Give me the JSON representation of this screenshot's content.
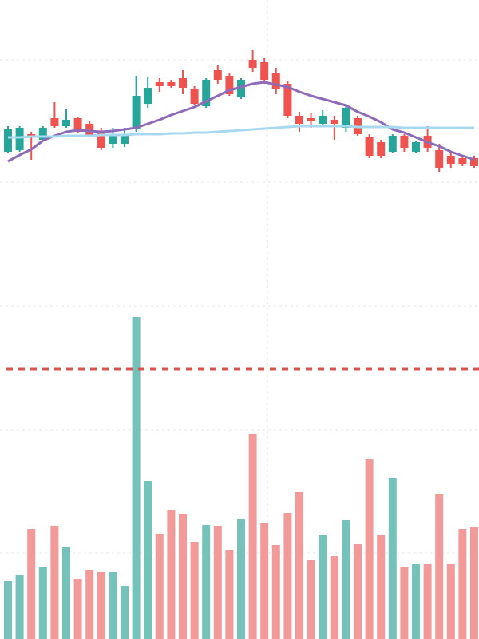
{
  "chart_data": [
    {
      "type": "candlestick",
      "categories": [
        null,
        null,
        null,
        null,
        null,
        null,
        null,
        null,
        null,
        null,
        null,
        null,
        null,
        null,
        null,
        null,
        null,
        null,
        null,
        null,
        null,
        null,
        null,
        null,
        null,
        null,
        null,
        null,
        null,
        null,
        null,
        null,
        null,
        null,
        null,
        null,
        null,
        null,
        null,
        null,
        null
      ],
      "open": [
        190,
        192,
        212,
        205,
        232,
        222,
        232,
        225,
        215,
        200,
        200,
        218,
        250,
        277,
        277,
        282,
        268,
        247,
        292,
        285,
        258,
        305,
        302,
        288,
        275,
        235,
        232,
        225,
        230,
        220,
        232,
        208,
        202,
        190,
        210,
        190,
        210,
        192,
        185,
        182,
        182
      ],
      "close": [
        218,
        220,
        208,
        220,
        222,
        230,
        215,
        210,
        195,
        210,
        212,
        260,
        270,
        272,
        272,
        270,
        250,
        280,
        280,
        262,
        280,
        295,
        280,
        268,
        235,
        225,
        228,
        235,
        225,
        245,
        212,
        185,
        185,
        210,
        195,
        202,
        195,
        170,
        175,
        175,
        172
      ],
      "high": [
        222,
        222,
        215,
        222,
        252,
        244,
        234,
        228,
        220,
        220,
        220,
        285,
        283,
        282,
        280,
        292,
        272,
        282,
        298,
        288,
        282,
        318,
        308,
        295,
        278,
        240,
        238,
        242,
        235,
        250,
        235,
        212,
        205,
        212,
        212,
        204,
        222,
        200,
        190,
        185,
        185
      ],
      "low": [
        188,
        190,
        180,
        203,
        220,
        220,
        213,
        208,
        192,
        195,
        196,
        215,
        245,
        265,
        270,
        262,
        248,
        245,
        275,
        260,
        256,
        290,
        275,
        262,
        232,
        215,
        220,
        222,
        205,
        215,
        210,
        182,
        182,
        188,
        190,
        188,
        190,
        165,
        170,
        172,
        170
      ],
      "up_color": "#26a69a",
      "down_color": "#ef5350",
      "series": [
        {
          "color": "#8e6bb8",
          "values": [
            178,
            186,
            193,
            204,
            210,
            215,
            217,
            216,
            215,
            216,
            218,
            220,
            225,
            230,
            236,
            241,
            246,
            253,
            260,
            267,
            271,
            275,
            277,
            274,
            271,
            265,
            260,
            256,
            252,
            248,
            240,
            234,
            227,
            218,
            214,
            208,
            202,
            197,
            190,
            185,
            180
          ]
        },
        {
          "color": "#a8d8f0",
          "values": [
            208,
            208,
            209,
            209,
            209,
            210,
            210,
            210,
            211,
            211,
            211,
            212,
            212,
            212,
            213,
            213,
            214,
            214,
            215,
            216,
            217,
            218,
            219,
            220,
            221,
            222,
            222,
            222,
            222,
            222,
            221,
            221,
            221,
            221,
            220,
            220,
            220,
            220,
            220,
            220,
            220
          ]
        }
      ],
      "ylim": [
        0,
        380
      ],
      "yticks": [
        152,
        305
      ],
      "grid": true
    },
    {
      "type": "bar",
      "values": [
        72,
        80,
        138,
        90,
        142,
        115,
        75,
        87,
        84,
        84,
        66,
        403,
        198,
        132,
        162,
        157,
        122,
        143,
        142,
        112,
        150,
        257,
        145,
        118,
        158,
        184,
        99,
        130,
        104,
        149,
        119,
        225,
        130,
        202,
        90,
        94,
        94,
        182,
        94,
        138,
        140
      ],
      "up_color": "#74c2ba",
      "down_color": "#f29a9a",
      "ylim": [
        0,
        420
      ],
      "yticks": [
        108,
        262,
        417
      ],
      "grid": true,
      "reference_line": 338,
      "reference_color": "#d9534f"
    }
  ]
}
